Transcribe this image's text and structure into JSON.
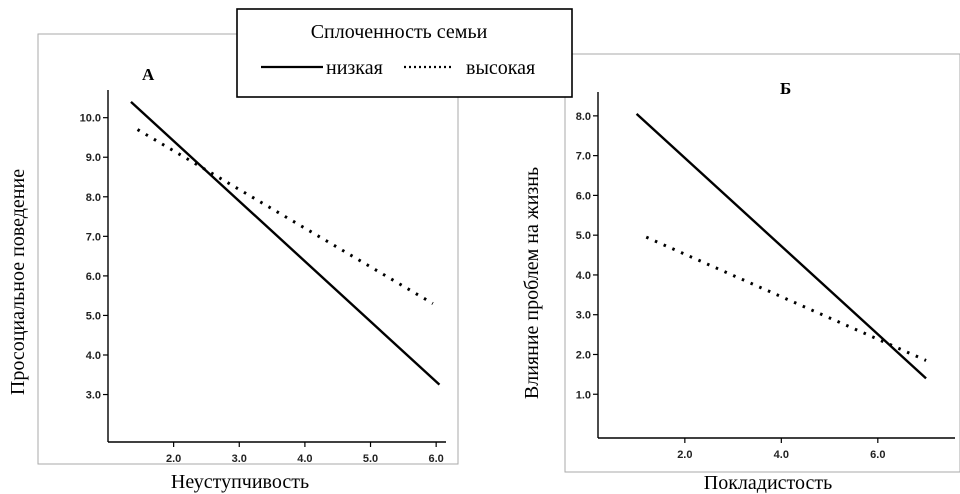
{
  "legend": {
    "title": "Сплоченность семьи",
    "entries": [
      {
        "label": "низкая",
        "style": "solid"
      },
      {
        "label": "высокая",
        "style": "dotted"
      }
    ]
  },
  "chart_data": [
    {
      "type": "line",
      "panel_label": "А",
      "xlabel": "Неуступчивость",
      "ylabel": "Просоциальное поведение",
      "xlim": [
        1.0,
        6.15
      ],
      "ylim": [
        1.8,
        10.7
      ],
      "xticks": [
        2.0,
        3.0,
        4.0,
        5.0,
        6.0
      ],
      "xtick_labels": [
        "2.0",
        "3.0",
        "4.0",
        "5.0",
        "6.0"
      ],
      "yticks": [
        3.0,
        4.0,
        5.0,
        6.0,
        7.0,
        8.0,
        9.0,
        10.0
      ],
      "ytick_labels": [
        "3.0",
        "4.0",
        "5.0",
        "6.0",
        "7.0",
        "8.0",
        "9.0",
        "10.0"
      ],
      "grid": false,
      "series": [
        {
          "name": "низкая",
          "style": "solid",
          "x": [
            1.35,
            6.05
          ],
          "y": [
            10.4,
            3.25
          ]
        },
        {
          "name": "высокая",
          "style": "dotted",
          "x": [
            1.45,
            5.95
          ],
          "y": [
            9.7,
            5.3
          ]
        }
      ]
    },
    {
      "type": "line",
      "panel_label": "Б",
      "xlabel": "Покладистость",
      "ylabel": "Влияние проблем на жизнь",
      "xlim": [
        0.2,
        7.6
      ],
      "ylim": [
        -0.1,
        8.6
      ],
      "xticks": [
        2.0,
        4.0,
        6.0
      ],
      "xtick_labels": [
        "2.0",
        "4.0",
        "6.0"
      ],
      "yticks": [
        1.0,
        2.0,
        3.0,
        4.0,
        5.0,
        6.0,
        7.0,
        8.0
      ],
      "ytick_labels": [
        "1.0",
        "2.0",
        "3.0",
        "4.0",
        "5.0",
        "6.0",
        "7.0",
        "8.0"
      ],
      "grid": false,
      "series": [
        {
          "name": "низкая",
          "style": "solid",
          "x": [
            1.0,
            7.0
          ],
          "y": [
            8.05,
            1.4
          ]
        },
        {
          "name": "высокая",
          "style": "dotted",
          "x": [
            1.2,
            7.0
          ],
          "y": [
            4.95,
            1.85
          ]
        }
      ]
    }
  ]
}
